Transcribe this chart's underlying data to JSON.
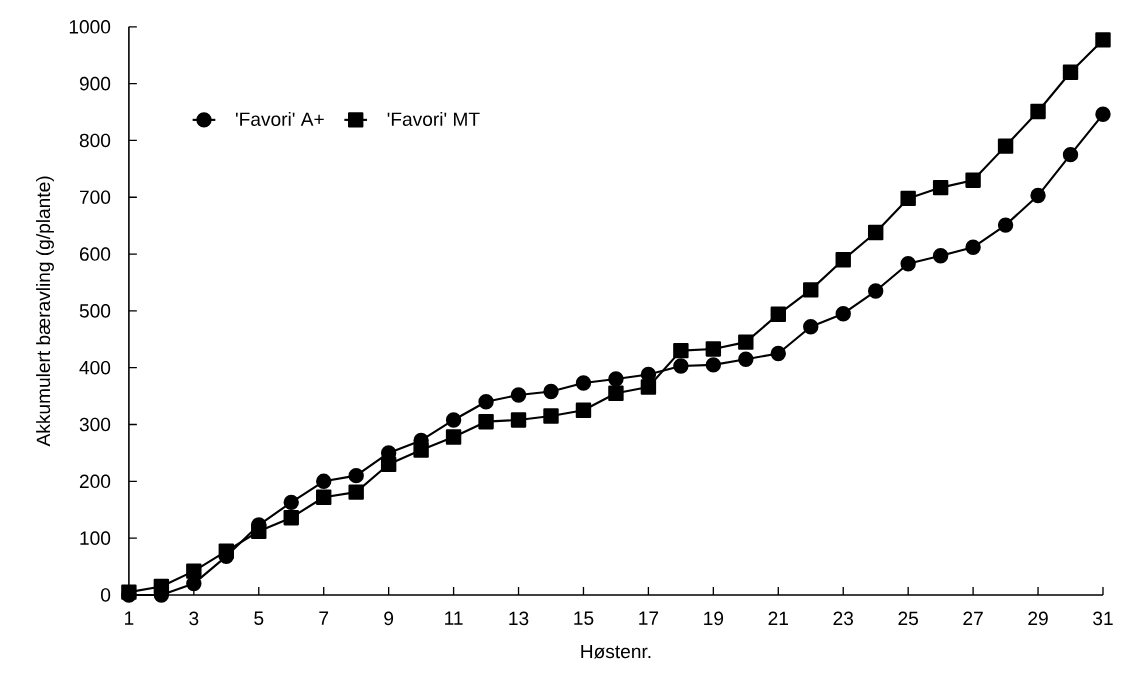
{
  "chart_data": {
    "type": "line",
    "xlabel": "Høstenr.",
    "ylabel": "Akkumulert bæravling (g/plante)",
    "x": [
      1,
      2,
      3,
      4,
      5,
      6,
      7,
      8,
      9,
      10,
      11,
      12,
      13,
      14,
      15,
      16,
      17,
      18,
      19,
      20,
      21,
      22,
      23,
      24,
      25,
      26,
      27,
      28,
      29,
      30,
      31
    ],
    "series": [
      {
        "name": "'Favori' A+",
        "color": "#000000",
        "marker": "circle",
        "values": [
          0,
          0,
          20,
          68,
          123,
          163,
          200,
          210,
          250,
          272,
          308,
          340,
          352,
          358,
          373,
          380,
          388,
          403,
          405,
          415,
          425,
          472,
          495,
          535,
          583,
          597,
          612,
          651,
          703,
          775,
          846
        ]
      },
      {
        "name": "'Favori' MT",
        "color": "#000000",
        "marker": "square",
        "values": [
          5,
          15,
          42,
          77,
          112,
          136,
          172,
          181,
          230,
          255,
          278,
          305,
          308,
          315,
          325,
          355,
          366,
          430,
          433,
          445,
          494,
          537,
          590,
          638,
          698,
          717,
          730,
          790,
          851,
          920,
          977
        ]
      }
    ],
    "xlim": [
      1,
      31
    ],
    "xticks": [
      1,
      3,
      5,
      7,
      9,
      11,
      13,
      15,
      17,
      19,
      21,
      23,
      25,
      27,
      29,
      31
    ],
    "ylim": [
      0,
      1000
    ],
    "yticks": [
      0,
      100,
      200,
      300,
      400,
      500,
      600,
      700,
      800,
      900,
      1000
    ],
    "grid": false,
    "legend": "top left",
    "line_style": "solid"
  }
}
